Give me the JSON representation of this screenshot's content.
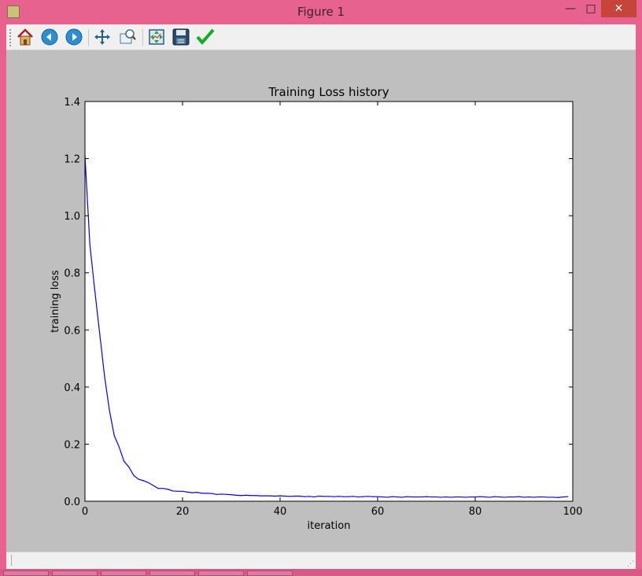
{
  "window": {
    "title": "Figure 1",
    "minimize_glyph": "—",
    "maximize_glyph": "□",
    "close_glyph": "✕"
  },
  "toolbar": {
    "buttons": [
      {
        "name": "home-icon",
        "label": "Home"
      },
      {
        "name": "back-icon",
        "label": "Back"
      },
      {
        "name": "forward-icon",
        "label": "Forward"
      },
      {
        "name": "pan-icon",
        "label": "Pan"
      },
      {
        "name": "zoom-icon",
        "label": "Zoom"
      },
      {
        "name": "configure-subplots-icon",
        "label": "Configure subplots"
      },
      {
        "name": "save-icon",
        "label": "Save"
      },
      {
        "name": "edit-parameters-icon",
        "label": "Edit parameters"
      }
    ]
  },
  "colors": {
    "line": "#0000ff",
    "canvas_bg": "#bfbfbf",
    "plot_bg": "#ffffff",
    "titlebar": "#e8628f"
  },
  "chart_data": {
    "type": "line",
    "title": "Training Loss history",
    "xlabel": "iteration",
    "ylabel": "training loss",
    "xlim": [
      0,
      100
    ],
    "ylim": [
      0,
      1.4
    ],
    "xticks": [
      0,
      20,
      40,
      60,
      80,
      100
    ],
    "xtick_labels": [
      "0",
      "20",
      "40",
      "60",
      "80",
      "100"
    ],
    "yticks": [
      0,
      0.2,
      0.4,
      0.6,
      0.8,
      1.0,
      1.2,
      1.4
    ],
    "ytick_labels": [
      "0.0",
      "0.2",
      "0.4",
      "0.6",
      "0.8",
      "1.0",
      "1.2",
      "1.4"
    ],
    "grid": false,
    "series": [
      {
        "x": [
          0,
          1,
          2,
          3,
          4,
          5,
          6,
          7,
          8,
          9,
          10,
          11,
          12,
          13,
          14,
          15,
          16,
          17,
          18,
          19,
          20,
          21,
          22,
          23,
          24,
          25,
          26,
          27,
          28,
          29,
          30,
          31,
          32,
          33,
          34,
          35,
          36,
          37,
          38,
          39,
          40,
          41,
          42,
          43,
          44,
          45,
          46,
          47,
          48,
          49,
          50,
          51,
          52,
          53,
          54,
          55,
          56,
          57,
          58,
          59,
          60,
          61,
          62,
          63,
          64,
          65,
          66,
          67,
          68,
          69,
          70,
          71,
          72,
          73,
          74,
          75,
          76,
          77,
          78,
          79,
          80,
          81,
          82,
          83,
          84,
          85,
          86,
          87,
          88,
          89,
          90,
          91,
          92,
          93,
          94,
          95,
          96,
          97,
          98,
          99
        ],
        "y": [
          1.21,
          0.9,
          0.74,
          0.59,
          0.44,
          0.32,
          0.23,
          0.19,
          0.14,
          0.12,
          0.09,
          0.077,
          0.072,
          0.065,
          0.055,
          0.045,
          0.045,
          0.042,
          0.036,
          0.035,
          0.035,
          0.032,
          0.03,
          0.031,
          0.028,
          0.028,
          0.027,
          0.024,
          0.025,
          0.024,
          0.023,
          0.021,
          0.02,
          0.021,
          0.02,
          0.02,
          0.019,
          0.019,
          0.019,
          0.018,
          0.019,
          0.018,
          0.017,
          0.018,
          0.018,
          0.016,
          0.017,
          0.015,
          0.018,
          0.017,
          0.017,
          0.016,
          0.017,
          0.016,
          0.016,
          0.017,
          0.015,
          0.016,
          0.017,
          0.016,
          0.016,
          0.015,
          0.014,
          0.016,
          0.015,
          0.014,
          0.016,
          0.015,
          0.015,
          0.015,
          0.016,
          0.015,
          0.015,
          0.014,
          0.015,
          0.014,
          0.015,
          0.015,
          0.014,
          0.015,
          0.015,
          0.016,
          0.015,
          0.014,
          0.016,
          0.015,
          0.014,
          0.015,
          0.015,
          0.016,
          0.014,
          0.015,
          0.014,
          0.015,
          0.015,
          0.014,
          0.014,
          0.013,
          0.015,
          0.016
        ]
      }
    ]
  }
}
